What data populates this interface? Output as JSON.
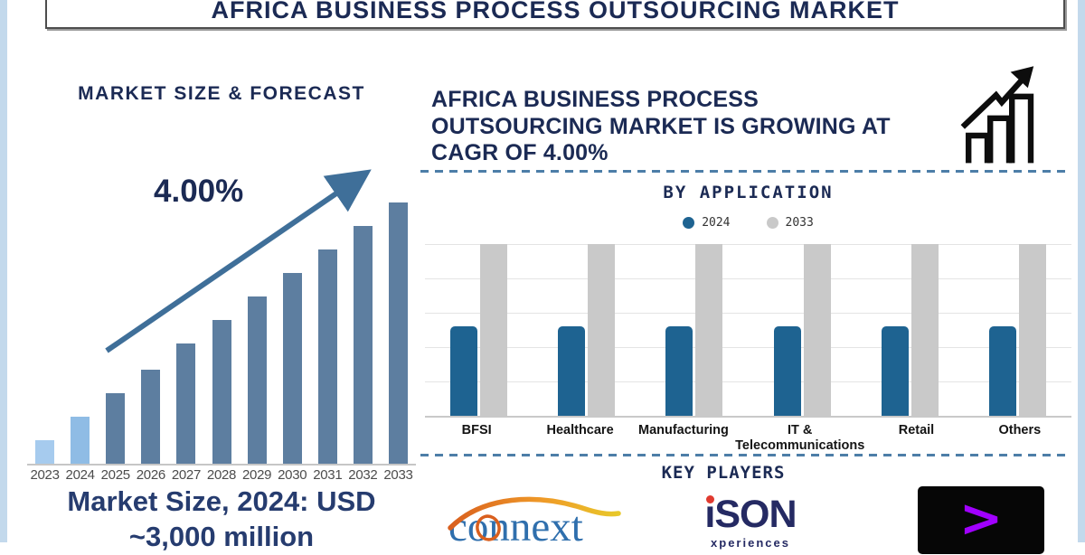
{
  "title": "AFRICA BUSINESS PROCESS OUTSOURCING MARKET",
  "left_panel": {
    "caption": "Market Size, 2024: USD\n~3,000 million"
  },
  "right_panel": {
    "statement": "AFRICA BUSINESS PROCESS\nOUTSOURCING MARKET IS GROWING AT\nCAGR OF 4.00%",
    "key_players": {
      "heading": "KEY PLAYERS",
      "players": [
        {
          "name": "Connext",
          "display": "connext"
        },
        {
          "name": "iSON Xperiences",
          "display": "ıSON",
          "sub": "xperiences"
        },
        {
          "name": "Accenture",
          "symbol": ">"
        }
      ]
    }
  },
  "colors": {
    "navy_text": "#1b2a54",
    "arrow_blue": "#3f6f99",
    "dashed_divider": "#4d7ea8",
    "accenture_purple": "#a100ff",
    "frame_blue": "#c3d9ec"
  },
  "chart_data": [
    {
      "type": "bar",
      "title": "MARKET SIZE & FORECAST",
      "annotation": "4.00%",
      "categories": [
        "2023",
        "2024",
        "2025",
        "2026",
        "2027",
        "2028",
        "2029",
        "2030",
        "2031",
        "2032",
        "2033"
      ],
      "values_relative": [
        9,
        18,
        27,
        36,
        46,
        55,
        64,
        73,
        82,
        91,
        100
      ],
      "value_note": "schematic bar heights in % of 2033 bar; labeled market size 2024 = USD ~3,000 million, CAGR 4.00%",
      "ylim": [
        0,
        100
      ],
      "xlabel": "",
      "ylabel": "",
      "grid": false,
      "bar_colors": [
        "#a6cbee",
        "#8fbce5",
        "#5d7ea0",
        "#5d7ea0",
        "#5d7ea0",
        "#5d7ea0",
        "#5d7ea0",
        "#5d7ea0",
        "#5d7ea0",
        "#5d7ea0",
        "#5d7ea0"
      ]
    },
    {
      "type": "bar",
      "title": "BY APPLICATION",
      "categories": [
        "BFSI",
        "Healthcare",
        "Manufacturing",
        "IT &\nTelecommunications",
        "Retail",
        "Others"
      ],
      "series": [
        {
          "name": "2024",
          "color": "#1e6391",
          "values": [
            52,
            52,
            52,
            52,
            52,
            52
          ]
        },
        {
          "name": "2033",
          "color": "#c9c9c9",
          "values": [
            100,
            100,
            100,
            100,
            100,
            100
          ]
        }
      ],
      "value_note": "schematic: all 2024 bars ≈52% of 2033 bars; no numeric axis shown",
      "ylim": [
        0,
        100
      ],
      "grid": true,
      "legend_position": "top"
    }
  ]
}
